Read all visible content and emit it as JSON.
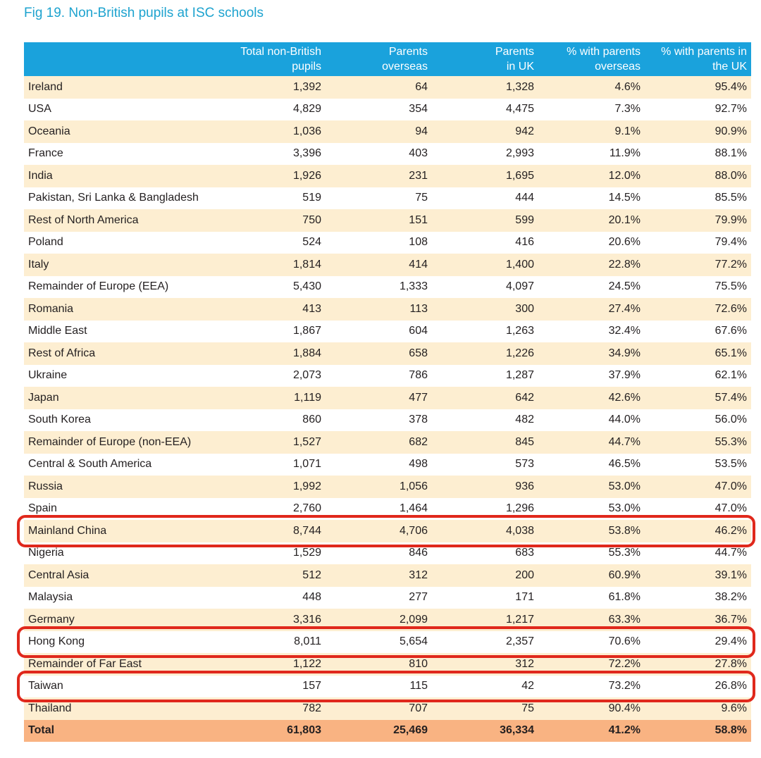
{
  "title": "Fig 19. Non-British pupils at ISC schools",
  "columns": [
    {
      "line1": "",
      "line2": ""
    },
    {
      "line1": "Total non-British",
      "line2": "pupils"
    },
    {
      "line1": "Parents",
      "line2": "overseas"
    },
    {
      "line1": "Parents",
      "line2": "in UK"
    },
    {
      "line1": "% with parents",
      "line2": "overseas"
    },
    {
      "line1": "% with parents in",
      "line2": "the UK"
    }
  ],
  "rows": [
    [
      "Ireland",
      "1,392",
      "64",
      "1,328",
      "4.6%",
      "95.4%"
    ],
    [
      "USA",
      "4,829",
      "354",
      "4,475",
      "7.3%",
      "92.7%"
    ],
    [
      "Oceania",
      "1,036",
      "94",
      "942",
      "9.1%",
      "90.9%"
    ],
    [
      "France",
      "3,396",
      "403",
      "2,993",
      "11.9%",
      "88.1%"
    ],
    [
      "India",
      "1,926",
      "231",
      "1,695",
      "12.0%",
      "88.0%"
    ],
    [
      "Pakistan, Sri Lanka & Bangladesh",
      "519",
      "75",
      "444",
      "14.5%",
      "85.5%"
    ],
    [
      "Rest of North America",
      "750",
      "151",
      "599",
      "20.1%",
      "79.9%"
    ],
    [
      "Poland",
      "524",
      "108",
      "416",
      "20.6%",
      "79.4%"
    ],
    [
      "Italy",
      "1,814",
      "414",
      "1,400",
      "22.8%",
      "77.2%"
    ],
    [
      "Remainder of Europe (EEA)",
      "5,430",
      "1,333",
      "4,097",
      "24.5%",
      "75.5%"
    ],
    [
      "Romania",
      "413",
      "113",
      "300",
      "27.4%",
      "72.6%"
    ],
    [
      "Middle East",
      "1,867",
      "604",
      "1,263",
      "32.4%",
      "67.6%"
    ],
    [
      "Rest of Africa",
      "1,884",
      "658",
      "1,226",
      "34.9%",
      "65.1%"
    ],
    [
      "Ukraine",
      "2,073",
      "786",
      "1,287",
      "37.9%",
      "62.1%"
    ],
    [
      "Japan",
      "1,119",
      "477",
      "642",
      "42.6%",
      "57.4%"
    ],
    [
      "South Korea",
      "860",
      "378",
      "482",
      "44.0%",
      "56.0%"
    ],
    [
      "Remainder of Europe (non-EEA)",
      "1,527",
      "682",
      "845",
      "44.7%",
      "55.3%"
    ],
    [
      "Central & South America",
      "1,071",
      "498",
      "573",
      "46.5%",
      "53.5%"
    ],
    [
      "Russia",
      "1,992",
      "1,056",
      "936",
      "53.0%",
      "47.0%"
    ],
    [
      "Spain",
      "2,760",
      "1,464",
      "1,296",
      "53.0%",
      "47.0%"
    ],
    [
      "Mainland China",
      "8,744",
      "4,706",
      "4,038",
      "53.8%",
      "46.2%"
    ],
    [
      "Nigeria",
      "1,529",
      "846",
      "683",
      "55.3%",
      "44.7%"
    ],
    [
      "Central Asia",
      "512",
      "312",
      "200",
      "60.9%",
      "39.1%"
    ],
    [
      "Malaysia",
      "448",
      "277",
      "171",
      "61.8%",
      "38.2%"
    ],
    [
      "Germany",
      "3,316",
      "2,099",
      "1,217",
      "63.3%",
      "36.7%"
    ],
    [
      "Hong Kong",
      "8,011",
      "5,654",
      "2,357",
      "70.6%",
      "29.4%"
    ],
    [
      "Remainder of Far East",
      "1,122",
      "810",
      "312",
      "72.2%",
      "27.8%"
    ],
    [
      "Taiwan",
      "157",
      "115",
      "42",
      "73.2%",
      "26.8%"
    ],
    [
      "Thailand",
      "782",
      "707",
      "75",
      "90.4%",
      "9.6%"
    ]
  ],
  "total": [
    "Total",
    "61,803",
    "25,469",
    "36,334",
    "41.2%",
    "58.8%"
  ],
  "highlighted_rows": [
    "Mainland China",
    "Hong Kong",
    "Taiwan"
  ],
  "colors": {
    "title": "#1ea3cf",
    "header_bg": "#1aa2dc",
    "band_bg": "#fdeed1",
    "total_bg": "#f9b382",
    "highlight": "#e0281c"
  }
}
